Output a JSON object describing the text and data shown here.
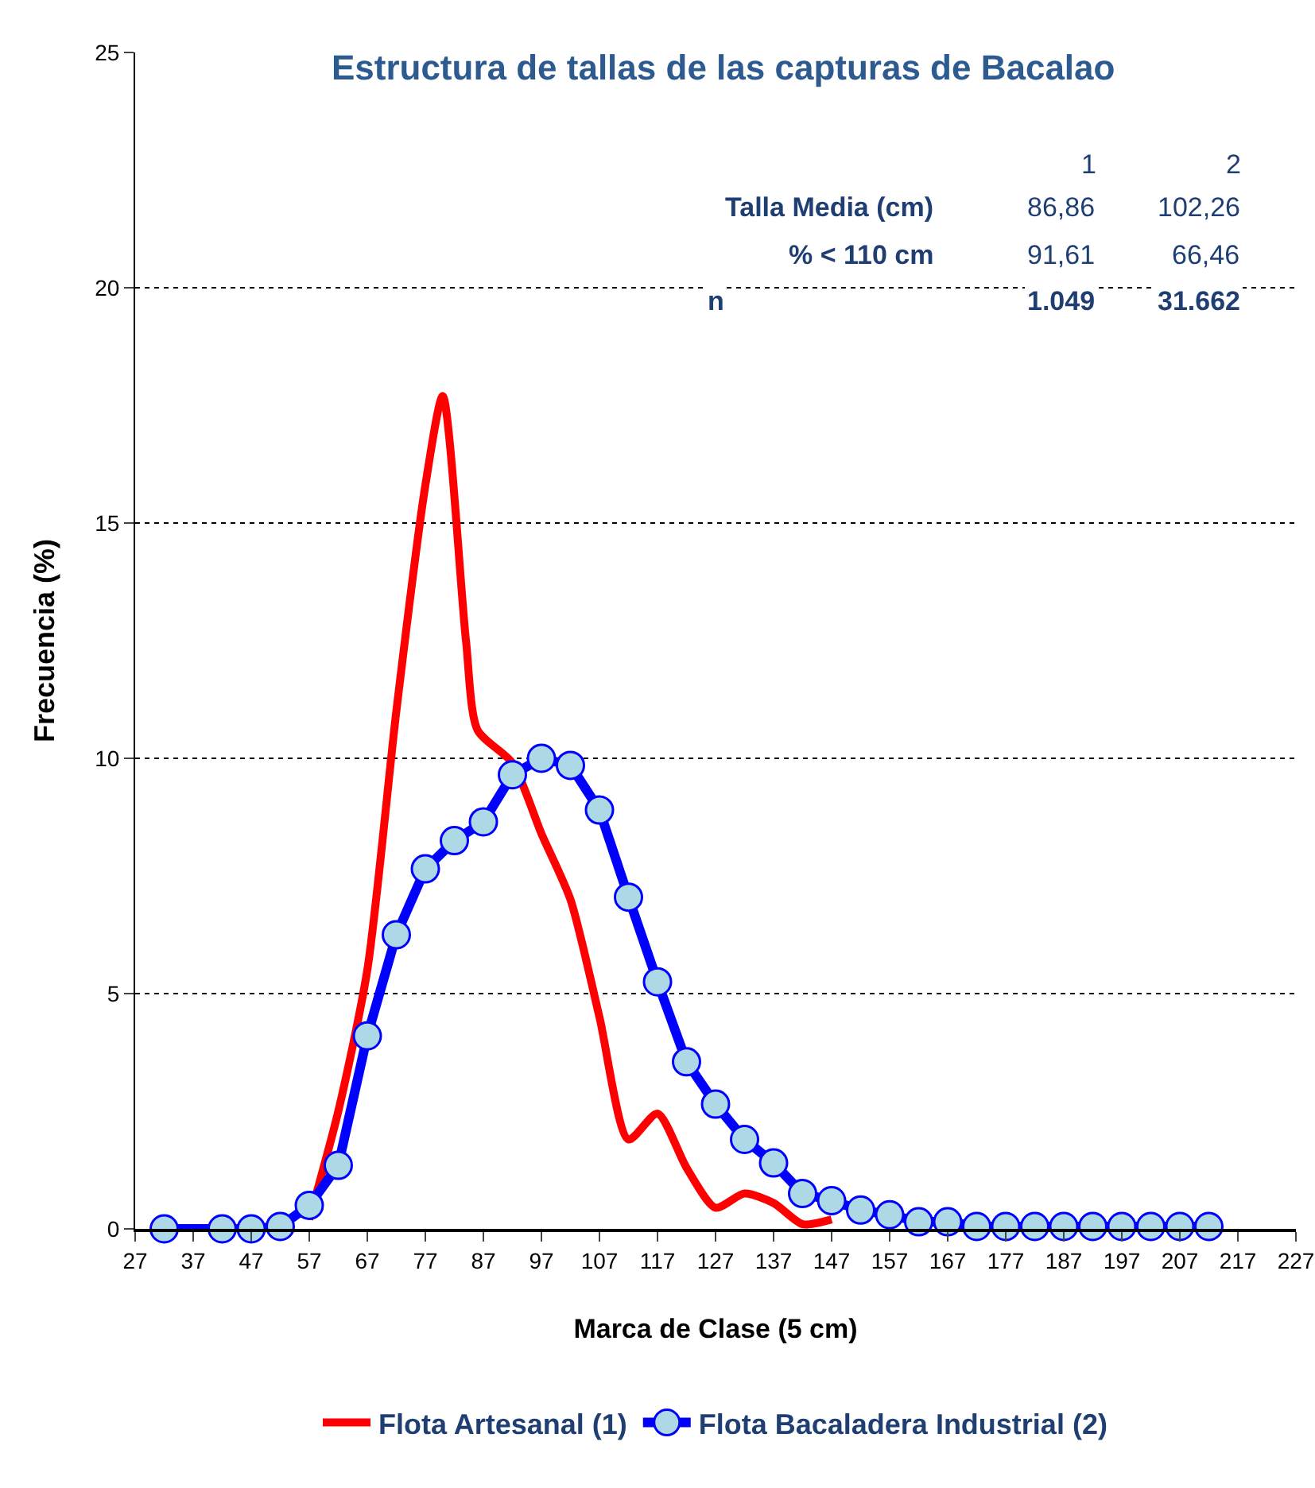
{
  "chart_data": {
    "type": "line",
    "title": "Estructura de tallas de las capturas de Bacalao",
    "xlabel": "Marca de Clase (5 cm)",
    "ylabel": "Frecuencia (%)",
    "xlim": [
      27,
      227
    ],
    "xticks": [
      27,
      37,
      47,
      57,
      67,
      77,
      87,
      97,
      107,
      117,
      127,
      137,
      147,
      157,
      167,
      177,
      187,
      197,
      207,
      217,
      227
    ],
    "ylim": [
      0,
      25
    ],
    "yticks": [
      0,
      5,
      10,
      15,
      20,
      25
    ],
    "grid": "y",
    "legend": "bottom",
    "series": [
      {
        "name": "Flota Artesanal (1)",
        "color": "#ff0000",
        "marker": "none",
        "x": [
          57,
          62,
          67,
          72,
          77,
          80,
          84,
          86,
          92,
          97,
          102,
          107,
          112,
          117,
          122,
          127,
          132,
          137,
          142,
          147
        ],
        "values": [
          0.2,
          2.5,
          5.5,
          11.0,
          15.8,
          17.7,
          12.5,
          10.6,
          9.9,
          8.4,
          7.0,
          4.5,
          1.9,
          2.45,
          1.3,
          0.45,
          0.75,
          0.55,
          0.1,
          0.2
        ]
      },
      {
        "name": "Flota Bacaladera Industrial (2)",
        "color": "#0000ff",
        "marker": "circle",
        "x": [
          32,
          42,
          47,
          52,
          57,
          62,
          67,
          72,
          77,
          82,
          87,
          92,
          97,
          102,
          107,
          112,
          117,
          122,
          127,
          132,
          137,
          142,
          147,
          152,
          157,
          162,
          167,
          172,
          177,
          182,
          187,
          192,
          197,
          202,
          207,
          212
        ],
        "values": [
          0,
          0,
          0,
          0.05,
          0.5,
          1.35,
          4.1,
          6.25,
          7.65,
          8.25,
          8.65,
          9.65,
          10.0,
          9.85,
          8.9,
          7.05,
          5.25,
          3.55,
          2.65,
          1.9,
          1.4,
          0.75,
          0.6,
          0.4,
          0.3,
          0.15,
          0.15,
          0.05,
          0.05,
          0.05,
          0.05,
          0.05,
          0.05,
          0.05,
          0.05,
          0.05
        ]
      }
    ],
    "annotations": [
      "1",
      "2",
      "Talla Media (cm)",
      "86,86",
      "102,26",
      "% < 110 cm",
      "91,61",
      "66,46",
      "n",
      "1.049",
      "31.662"
    ]
  }
}
